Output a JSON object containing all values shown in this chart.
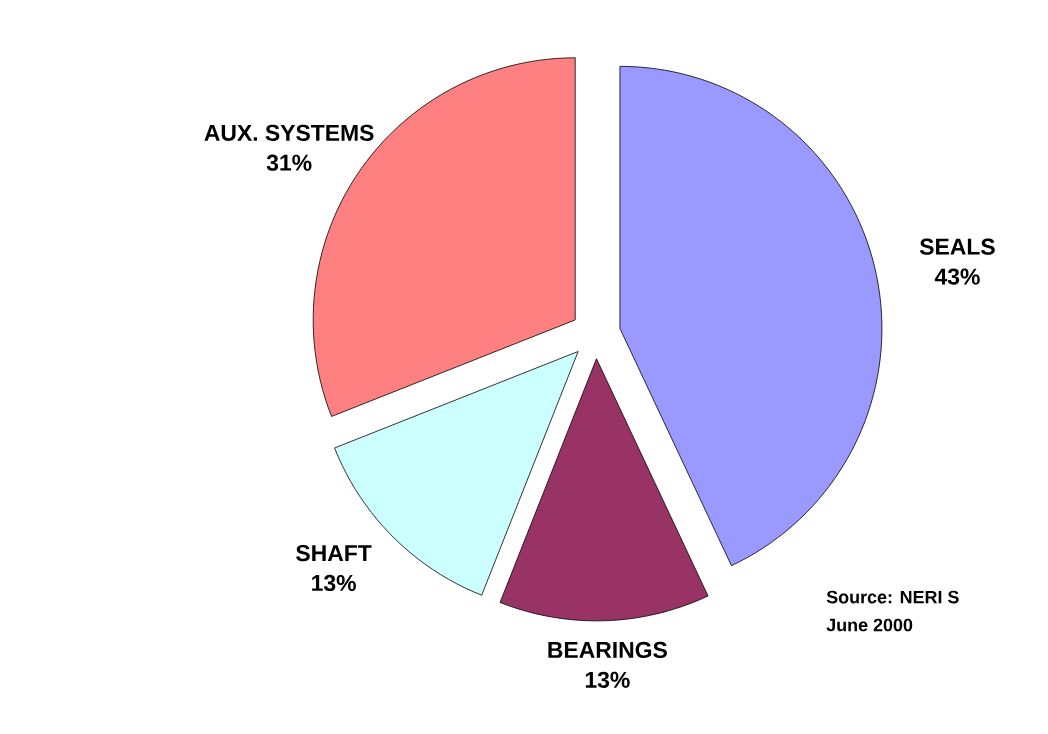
{
  "chart_data": {
    "type": "pie",
    "categories": [
      "SEALS",
      "BEARINGS",
      "SHAFT",
      "AUX. SYSTEMS"
    ],
    "values": [
      43,
      13,
      13,
      31
    ],
    "value_labels": [
      "43%",
      "13%",
      "13%",
      "31%"
    ],
    "colors": [
      "#9999ff",
      "#993366",
      "#ccffff",
      "#ff8080"
    ],
    "annotations": [
      "Source: NERI S",
      "June 2000"
    ]
  }
}
